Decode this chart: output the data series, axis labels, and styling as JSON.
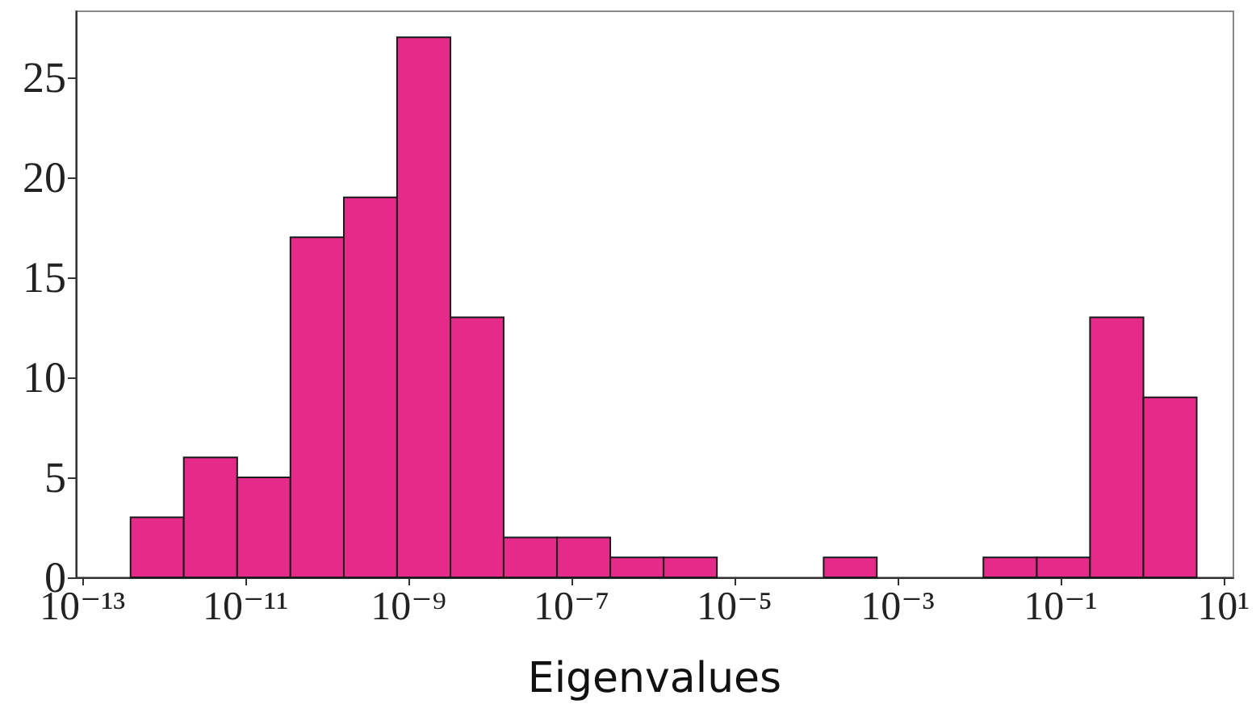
{
  "chart_data": {
    "type": "histogram",
    "xlabel": "Eigenvalues",
    "log": "x",
    "color": "#e62a8a",
    "bins": [
      3.89e-13,
      1.75e-12,
      7.91e-12,
      3.56e-11,
      1.61e-10,
      7.24e-10,
      3.27e-09,
      1.47e-08,
      6.64e-08,
      2.99e-07,
      1.35e-06,
      6.08e-06,
      2.74e-05,
      0.000124,
      0.000557,
      0.00251,
      0.0113,
      0.0511,
      0.23,
      1.04,
      4.68
    ],
    "values": [
      3,
      6,
      5,
      17,
      19,
      27,
      13,
      2,
      2,
      1,
      1,
      0,
      0,
      1,
      0,
      0,
      1,
      1,
      13,
      9
    ],
    "xlim": [
      8.3e-14,
      13.2
    ],
    "xticks": [
      {
        "value": 1e-13,
        "label": "10⁻¹³"
      },
      {
        "value": 1e-11,
        "label": "10⁻¹¹"
      },
      {
        "value": 1e-09,
        "label": "10⁻⁹"
      },
      {
        "value": 1e-07,
        "label": "10⁻⁷"
      },
      {
        "value": 1e-05,
        "label": "10⁻⁵"
      },
      {
        "value": 0.001,
        "label": "10⁻³"
      },
      {
        "value": 0.1,
        "label": "10⁻¹"
      },
      {
        "value": 10,
        "label": "10¹"
      }
    ],
    "ylim": [
      0,
      28.3
    ],
    "yticks": [
      0,
      5,
      10,
      15,
      20,
      25
    ],
    "grid": false
  }
}
